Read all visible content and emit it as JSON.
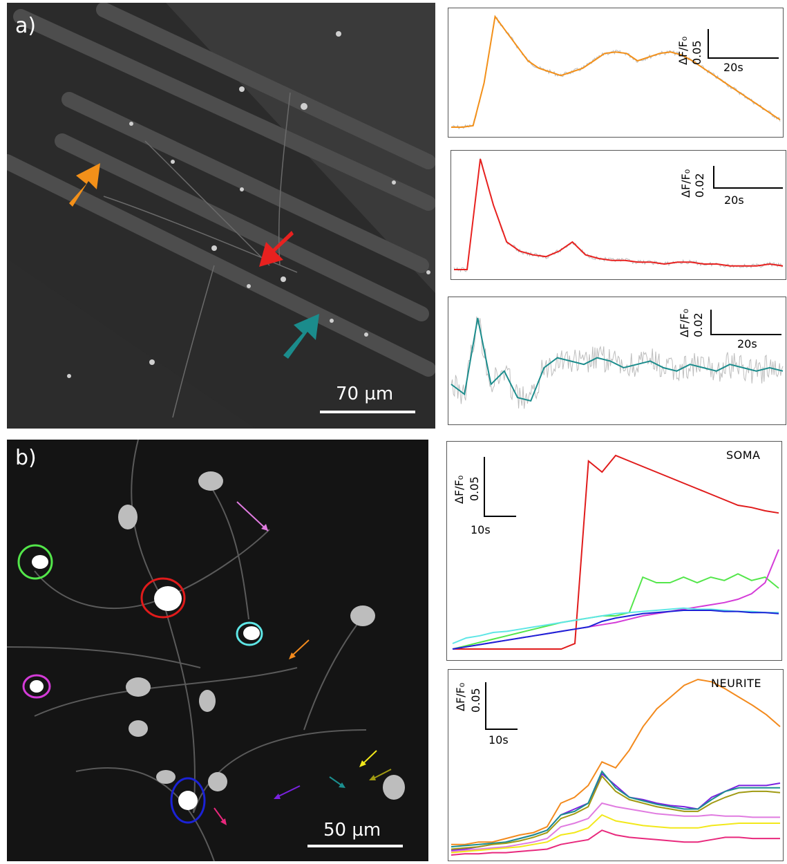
{
  "panel_a": {
    "label": "a)",
    "scale_bar": "70 µm",
    "arrow_colors": {
      "orange": "#f39019",
      "red": "#e8211f",
      "teal": "#1b8c8c"
    }
  },
  "panel_b": {
    "label": "b)",
    "scale_bar": "50 µm",
    "roi_colors": [
      "#53e64a",
      "#e01b1b",
      "#5ee6e6",
      "#d43bd8",
      "#1b22d6"
    ],
    "arrow_colors": [
      "#e07be0",
      "#f38a1d",
      "#f2e81a",
      "#1b8f8f",
      "#a09a12",
      "#7a22e0",
      "#e8287c"
    ]
  },
  "traces_a": [
    {
      "ylabel": "ΔF/F₀",
      "yscale": "0.05",
      "xscale": "20s",
      "color": "#f39019"
    },
    {
      "ylabel": "ΔF/F₀",
      "yscale": "0.02",
      "xscale": "20s",
      "color": "#e8211f"
    },
    {
      "ylabel": "ΔF/F₀",
      "yscale": "0.02",
      "xscale": "20s",
      "color": "#1b8c8c"
    }
  ],
  "soma": {
    "title": "SOMA",
    "ylabel": "ΔF/F₀",
    "yscale": "0.05",
    "xscale": "10s"
  },
  "neurite": {
    "title": "NEURITE",
    "ylabel": "ΔF/F₀",
    "yscale": "0.05",
    "xscale": "10s"
  },
  "chart_data": [
    {
      "type": "line",
      "title": "",
      "series": [
        {
          "color": "#f39019",
          "values": [
            0.01,
            0.01,
            0.012,
            0.07,
            0.16,
            0.14,
            0.12,
            0.1,
            0.09,
            0.085,
            0.08,
            0.085,
            0.09,
            0.1,
            0.11,
            0.112,
            0.11,
            0.1,
            0.105,
            0.11,
            0.112,
            0.108,
            0.1,
            0.09,
            0.08,
            0.07,
            0.06,
            0.05,
            0.04,
            0.03,
            0.02
          ]
        }
      ]
    },
    {
      "type": "line",
      "title": "",
      "series": [
        {
          "color": "#e8211f",
          "values": [
            0.0,
            0.0,
            0.06,
            0.035,
            0.015,
            0.01,
            0.008,
            0.007,
            0.01,
            0.015,
            0.008,
            0.006,
            0.005,
            0.005,
            0.004,
            0.004,
            0.003,
            0.004,
            0.004,
            0.003,
            0.003,
            0.002,
            0.002,
            0.002,
            0.003,
            0.002
          ]
        }
      ]
    },
    {
      "type": "line",
      "title": "",
      "series": [
        {
          "color": "#1b8c8c",
          "values": [
            0.0,
            -0.003,
            0.02,
            0.0,
            0.004,
            -0.004,
            -0.005,
            0.005,
            0.008,
            0.007,
            0.006,
            0.008,
            0.007,
            0.005,
            0.006,
            0.007,
            0.005,
            0.004,
            0.006,
            0.005,
            0.004,
            0.006,
            0.005,
            0.004,
            0.005,
            0.004
          ]
        }
      ]
    },
    {
      "type": "line",
      "title": "SOMA",
      "series": [
        {
          "color": "#e01b1b",
          "values": [
            0,
            0,
            0,
            0,
            0,
            0,
            0,
            0,
            0,
            0.005,
            0.17,
            0.16,
            0.175,
            0.17,
            0.165,
            0.16,
            0.155,
            0.15,
            0.145,
            0.14,
            0.135,
            0.13,
            0.128,
            0.125,
            0.123
          ]
        },
        {
          "color": "#53e64a",
          "values": [
            0,
            0.003,
            0.006,
            0.009,
            0.012,
            0.015,
            0.018,
            0.021,
            0.024,
            0.026,
            0.028,
            0.03,
            0.03,
            0.033,
            0.065,
            0.06,
            0.06,
            0.065,
            0.06,
            0.065,
            0.062,
            0.068,
            0.062,
            0.065,
            0.055
          ]
        },
        {
          "color": "#d43bd8",
          "values": [
            0,
            0.002,
            0.004,
            0.006,
            0.008,
            0.01,
            0.012,
            0.014,
            0.016,
            0.018,
            0.02,
            0.022,
            0.024,
            0.027,
            0.03,
            0.032,
            0.034,
            0.036,
            0.038,
            0.04,
            0.042,
            0.045,
            0.05,
            0.06,
            0.09
          ]
        },
        {
          "color": "#5ee6e6",
          "values": [
            0.005,
            0.01,
            0.012,
            0.015,
            0.016,
            0.018,
            0.02,
            0.022,
            0.024,
            0.026,
            0.028,
            0.03,
            0.032,
            0.033,
            0.034,
            0.035,
            0.036,
            0.037,
            0.036,
            0.036,
            0.035,
            0.034,
            0.034,
            0.033,
            0.033
          ]
        },
        {
          "color": "#1b22d6",
          "values": [
            0,
            0.002,
            0.004,
            0.006,
            0.008,
            0.01,
            0.012,
            0.014,
            0.016,
            0.018,
            0.02,
            0.025,
            0.028,
            0.03,
            0.032,
            0.033,
            0.034,
            0.035,
            0.035,
            0.035,
            0.034,
            0.034,
            0.033,
            0.033,
            0.032
          ]
        }
      ]
    },
    {
      "type": "line",
      "title": "NEURITE",
      "series": [
        {
          "color": "#f38a1d",
          "values": [
            0.01,
            0.01,
            0.012,
            0.012,
            0.015,
            0.018,
            0.02,
            0.025,
            0.045,
            0.05,
            0.06,
            0.08,
            0.075,
            0.09,
            0.11,
            0.125,
            0.135,
            0.145,
            0.15,
            0.148,
            0.142,
            0.135,
            0.128,
            0.12,
            0.11
          ]
        },
        {
          "color": "#7a22e0",
          "values": [
            0.005,
            0.006,
            0.008,
            0.01,
            0.012,
            0.015,
            0.018,
            0.022,
            0.035,
            0.04,
            0.045,
            0.07,
            0.06,
            0.05,
            0.048,
            0.045,
            0.043,
            0.042,
            0.04,
            0.05,
            0.055,
            0.06,
            0.06,
            0.06,
            0.062
          ]
        },
        {
          "color": "#1b8f8f",
          "values": [
            0.008,
            0.009,
            0.01,
            0.011,
            0.012,
            0.015,
            0.018,
            0.022,
            0.035,
            0.038,
            0.045,
            0.072,
            0.058,
            0.05,
            0.047,
            0.044,
            0.042,
            0.04,
            0.04,
            0.048,
            0.055,
            0.058,
            0.058,
            0.058,
            0.058
          ]
        },
        {
          "color": "#a09a12",
          "values": [
            0.006,
            0.007,
            0.008,
            0.01,
            0.011,
            0.013,
            0.016,
            0.02,
            0.032,
            0.036,
            0.042,
            0.068,
            0.055,
            0.048,
            0.045,
            0.042,
            0.04,
            0.038,
            0.038,
            0.045,
            0.05,
            0.054,
            0.055,
            0.055,
            0.054
          ]
        },
        {
          "color": "#e07be0",
          "values": [
            0.004,
            0.005,
            0.006,
            0.007,
            0.008,
            0.01,
            0.012,
            0.015,
            0.025,
            0.028,
            0.032,
            0.045,
            0.042,
            0.04,
            0.038,
            0.036,
            0.035,
            0.034,
            0.034,
            0.035,
            0.034,
            0.034,
            0.033,
            0.033,
            0.033
          ]
        },
        {
          "color": "#f2e81a",
          "values": [
            0.003,
            0.004,
            0.005,
            0.006,
            0.007,
            0.008,
            0.01,
            0.012,
            0.018,
            0.02,
            0.024,
            0.035,
            0.03,
            0.028,
            0.026,
            0.025,
            0.024,
            0.024,
            0.024,
            0.026,
            0.027,
            0.028,
            0.028,
            0.028,
            0.028
          ]
        },
        {
          "color": "#e8287c",
          "values": [
            0.001,
            0.002,
            0.002,
            0.003,
            0.003,
            0.004,
            0.005,
            0.006,
            0.01,
            0.012,
            0.014,
            0.022,
            0.018,
            0.016,
            0.015,
            0.014,
            0.013,
            0.012,
            0.012,
            0.014,
            0.016,
            0.016,
            0.015,
            0.015,
            0.015
          ]
        }
      ]
    }
  ]
}
